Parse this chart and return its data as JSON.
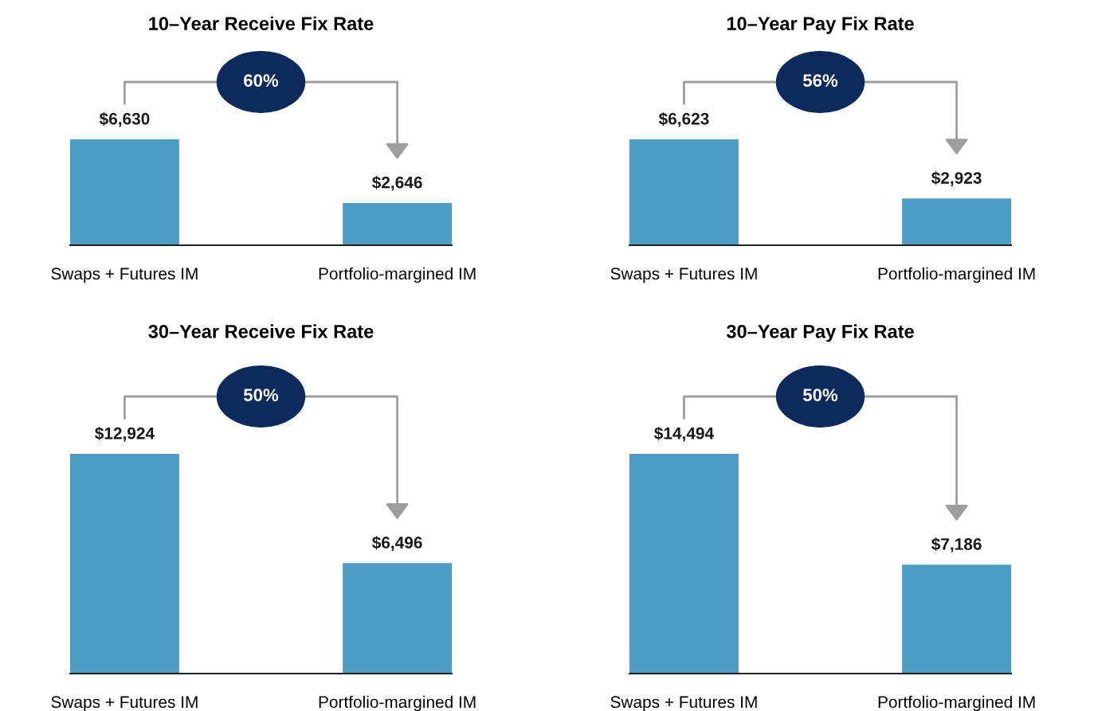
{
  "chart_data": [
    {
      "type": "bar",
      "title": "10–Year Receive Fix Rate",
      "categories": [
        "Swaps + Futures IM",
        "Portfolio-margined IM"
      ],
      "values": [
        6630,
        2646
      ],
      "color": "#4f9cc6",
      "value_labels": [
        "$6,630",
        "$2,646"
      ],
      "annotations": [
        "60%"
      ],
      "tick_labels": "x",
      "grid": false,
      "legend": false
    },
    {
      "type": "bar",
      "title": "10–Year Pay Fix Rate",
      "categories": [
        "Swaps + Futures IM",
        "Portfolio-margined IM"
      ],
      "values": [
        6623,
        2923
      ],
      "color": "#4f9cc6",
      "value_labels": [
        "$6,623",
        "$2,923"
      ],
      "annotations": [
        "56%"
      ],
      "tick_labels": "x",
      "grid": false,
      "legend": false
    },
    {
      "type": "bar",
      "title": "30–Year Receive Fix Rate",
      "categories": [
        "Swaps + Futures IM",
        "Portfolio-margined IM"
      ],
      "values": [
        12924,
        6496
      ],
      "color": "#4f9cc6",
      "value_labels": [
        "$12,924",
        "$6,496"
      ],
      "annotations": [
        "50%"
      ],
      "tick_labels": "x",
      "grid": false,
      "legend": false
    },
    {
      "type": "bar",
      "title": "30–Year Pay Fix Rate",
      "categories": [
        "Swaps + Futures IM",
        "Portfolio-margined IM"
      ],
      "values": [
        14494,
        7186
      ],
      "color": "#4f9cc6",
      "value_labels": [
        "$14,494",
        "$7,186"
      ],
      "annotations": [
        "50%"
      ],
      "tick_labels": "x",
      "grid": false,
      "legend": false
    }
  ]
}
